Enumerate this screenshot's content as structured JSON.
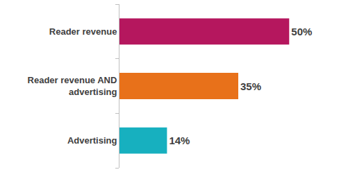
{
  "chart_data": {
    "type": "bar",
    "orientation": "horizontal",
    "categories": [
      "Reader revenue",
      "Reader revenue AND advertising",
      "Advertising"
    ],
    "values": [
      50,
      35,
      14
    ],
    "value_labels": [
      "50%",
      "35%",
      "14%"
    ],
    "colors": [
      "#b5175e",
      "#e8711a",
      "#17b0bf"
    ],
    "xlim": [
      0,
      70
    ],
    "data_labels": true,
    "tick_labels": "y",
    "grid": false
  }
}
